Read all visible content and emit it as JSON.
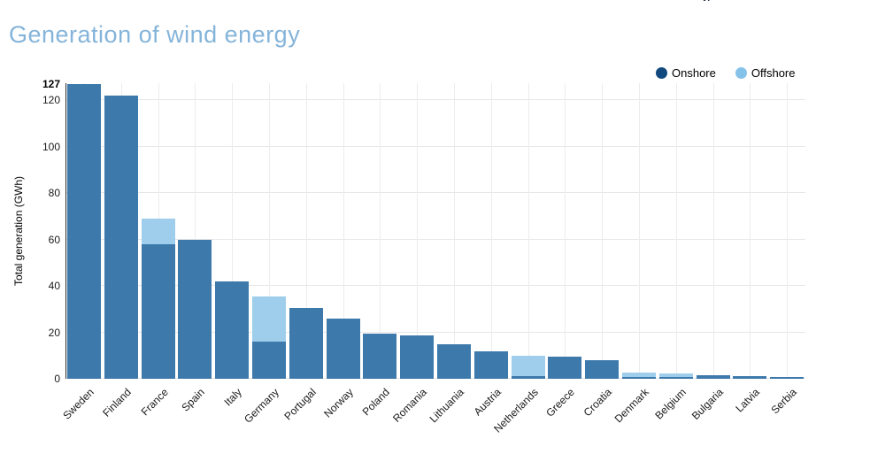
{
  "page": {
    "top_cutoff_text": "vi"
  },
  "header": {
    "title": "Generation of wind energy"
  },
  "legend": {
    "items": [
      {
        "label": "Onshore",
        "color": "#11497e"
      },
      {
        "label": "Offshore",
        "color": "#85c2ea"
      }
    ]
  },
  "axes": {
    "y_title": "Total generation (GWh)",
    "y_ticks": [
      0,
      20,
      40,
      60,
      80,
      100,
      120
    ],
    "y_max_label": "127"
  },
  "colors": {
    "title": "#84b4da",
    "onshore_bar": "#3d79ab",
    "offshore_bar": "#9fceec",
    "grid": "#e7e7e7",
    "axis_line": "#2b2b2b"
  },
  "chart_data": {
    "type": "bar",
    "stacked": true,
    "title": "Generation of wind energy",
    "xlabel": "",
    "ylabel": "Total generation (GWh)",
    "ylim": [
      0,
      127
    ],
    "grid": true,
    "legend_position": "top-right",
    "categories": [
      "Sweden",
      "Finland",
      "France",
      "Spain",
      "Italy",
      "Germany",
      "Portugal",
      "Norway",
      "Poland",
      "Romania",
      "Lithuania",
      "Austria",
      "Netherlands",
      "Greece",
      "Croatia",
      "Denmark",
      "Belgium",
      "Bulgaria",
      "Latvia",
      "Serbia"
    ],
    "series": [
      {
        "name": "Onshore",
        "color": "#3d79ab",
        "values": [
          127,
          122,
          58,
          60,
          42,
          16,
          30.5,
          26,
          19.5,
          18.5,
          15,
          12,
          1,
          9.5,
          8,
          0.8,
          0.7,
          1.6,
          1.1,
          0.9
        ]
      },
      {
        "name": "Offshore",
        "color": "#9fceec",
        "values": [
          0,
          0,
          11,
          0,
          0,
          19.5,
          0,
          0,
          0,
          0,
          0,
          0,
          9,
          0,
          0,
          1.9,
          1.6,
          0,
          0,
          0
        ]
      }
    ]
  }
}
